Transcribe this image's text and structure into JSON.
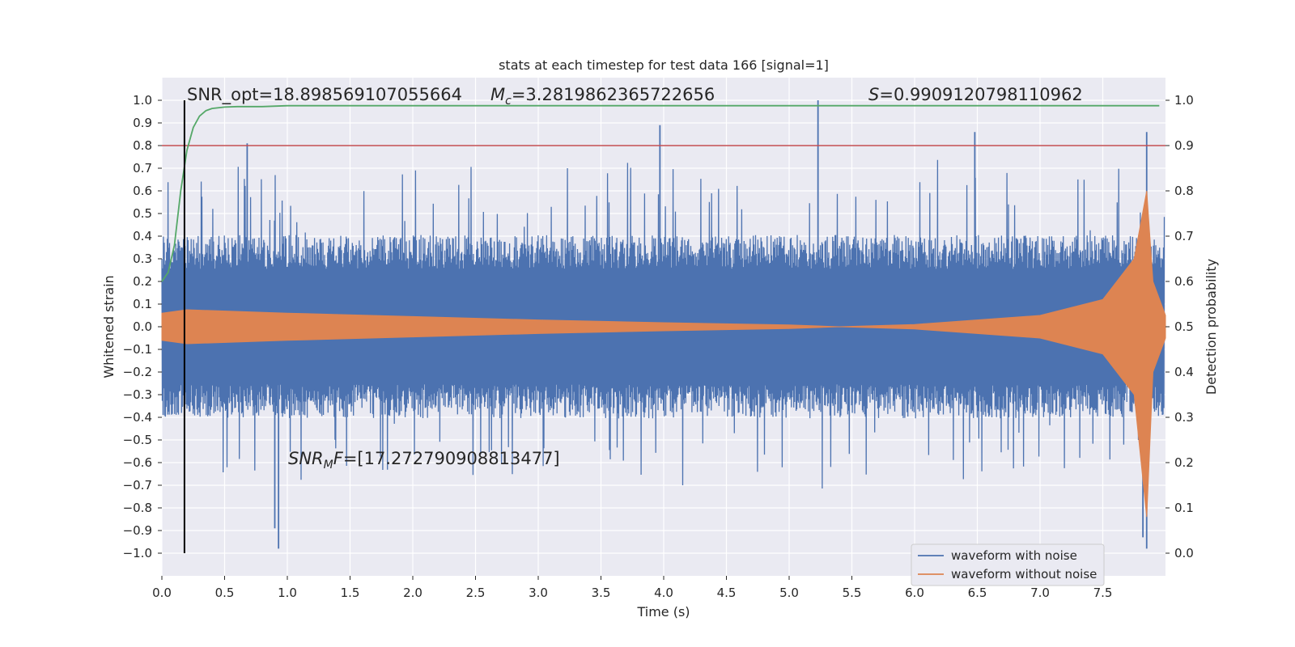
{
  "chart_data": {
    "type": "line",
    "title": "stats at each timestep for test data 166 [signal=1]",
    "xlabel": "Time (s)",
    "ylabel": "Whitened strain",
    "y2label": "Detection probability",
    "xlim": [
      0.0,
      8.0
    ],
    "ylim": [
      -1.1,
      1.1
    ],
    "y2lim": [
      -0.05,
      1.05
    ],
    "grid": true,
    "legend_position": "lower right",
    "x_ticks": [
      "0.0",
      "0.5",
      "1.0",
      "1.5",
      "2.0",
      "2.5",
      "3.0",
      "3.5",
      "4.0",
      "4.5",
      "5.0",
      "5.5",
      "6.0",
      "6.5",
      "7.0",
      "7.5"
    ],
    "y_ticks": [
      "1.0",
      "0.9",
      "0.8",
      "0.7",
      "0.6",
      "0.5",
      "0.4",
      "0.3",
      "0.2",
      "0.1",
      "0.0",
      "−0.1",
      "−0.2",
      "−0.3",
      "−0.4",
      "−0.5",
      "−0.6",
      "−0.7",
      "−0.8",
      "−0.9",
      "−1.0"
    ],
    "y2_ticks": [
      "1.0",
      "0.9",
      "0.8",
      "0.7",
      "0.6",
      "0.5",
      "0.4",
      "0.3",
      "0.2",
      "0.1",
      "0.0"
    ],
    "series": [
      {
        "name": "waveform with noise",
        "color": "#4c72b0",
        "approx_envelope_typical": 0.3,
        "notable_peaks": [
          {
            "x": 0.68,
            "y": 0.81
          },
          {
            "x": 3.97,
            "y": 0.89
          },
          {
            "x": 5.23,
            "y": 1.0
          },
          {
            "x": 6.48,
            "y": 0.86
          },
          {
            "x": 7.85,
            "y": 0.86
          },
          {
            "x": 0.93,
            "y": -0.98
          },
          {
            "x": 0.9,
            "y": -0.89
          },
          {
            "x": 7.85,
            "y": -0.98
          },
          {
            "x": 7.82,
            "y": -0.93
          }
        ]
      },
      {
        "name": "waveform without noise",
        "color": "#dd8452",
        "envelope": [
          {
            "x": 0.0,
            "amp": 0.06
          },
          {
            "x": 0.2,
            "amp": 0.075
          },
          {
            "x": 1.0,
            "amp": 0.06
          },
          {
            "x": 2.0,
            "amp": 0.045
          },
          {
            "x": 3.0,
            "amp": 0.03
          },
          {
            "x": 4.0,
            "amp": 0.018
          },
          {
            "x": 5.0,
            "amp": 0.008
          },
          {
            "x": 5.4,
            "amp": 0.0
          },
          {
            "x": 6.0,
            "amp": 0.01
          },
          {
            "x": 7.0,
            "amp": 0.05
          },
          {
            "x": 7.5,
            "amp": 0.12
          },
          {
            "x": 7.75,
            "amp": 0.3
          },
          {
            "x": 7.85,
            "amp": 0.6
          },
          {
            "x": 7.9,
            "amp": 0.2
          },
          {
            "x": 8.0,
            "amp": 0.05
          }
        ]
      },
      {
        "color": "#55a868",
        "axis": "right",
        "x": [
          0.0,
          0.05,
          0.1,
          0.15,
          0.2,
          0.25,
          0.3,
          0.35,
          0.4,
          0.5,
          0.6,
          0.8,
          1.0,
          2.0,
          3.0,
          4.0,
          5.0,
          6.0,
          7.0,
          7.95
        ],
        "y": [
          0.6,
          0.62,
          0.68,
          0.8,
          0.89,
          0.94,
          0.965,
          0.977,
          0.982,
          0.985,
          0.986,
          0.986,
          0.988,
          0.988,
          0.988,
          0.988,
          0.988,
          0.988,
          0.988,
          0.988
        ]
      }
    ],
    "threshold_line": {
      "y2": 0.9,
      "color": "#c44e52"
    },
    "marker_line": {
      "x": 0.18,
      "color": "#000000",
      "y_from": -1.0,
      "y_to": 1.0
    },
    "annotations": {
      "snr_opt": "SNR_opt=18.898569107055664",
      "mc_symbol": "M",
      "mc_sub": "c",
      "mc_value": "=3.2819862365722656",
      "s_symbol": "S",
      "s_value": "=0.9909120798110962",
      "snr_mf_symbol": "SNR",
      "snr_mf_sub": "M",
      "snr_mf_tail": "F",
      "snr_mf_value": "=[17.272790908813477]"
    }
  }
}
